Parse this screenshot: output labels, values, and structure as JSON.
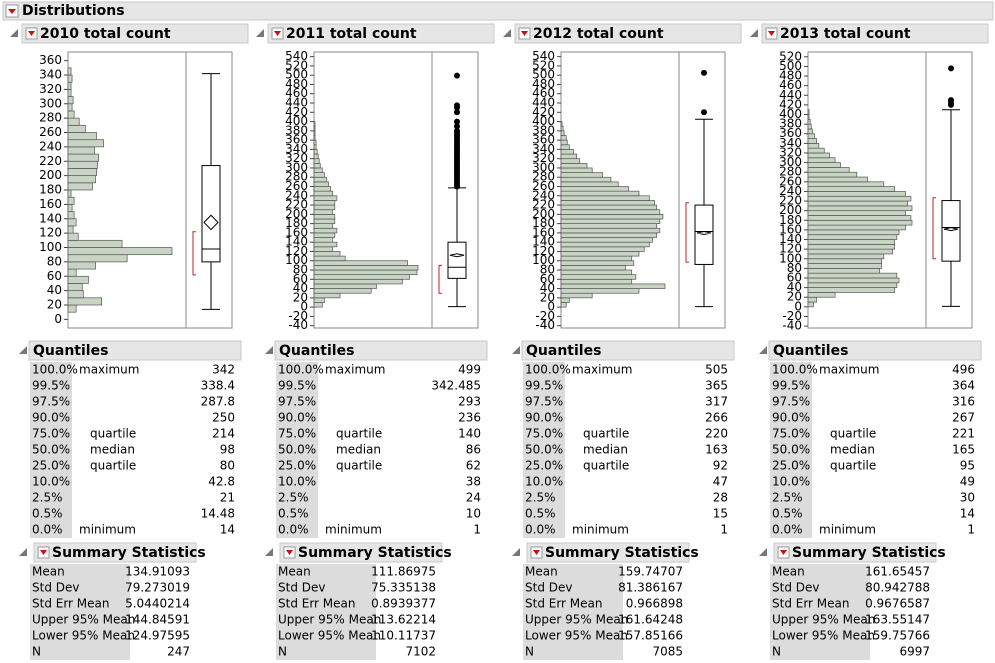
{
  "title": "Distributions",
  "panels": [
    {
      "title": "2010 total count",
      "histogram": {
        "ylim": [
          -12,
          372
        ],
        "yticks": [
          0,
          20,
          40,
          60,
          80,
          100,
          120,
          140,
          160,
          180,
          200,
          220,
          240,
          260,
          280,
          300,
          320,
          340,
          360
        ],
        "bins": [
          10,
          20,
          30,
          40,
          50,
          60,
          70,
          80,
          90,
          100,
          110,
          120,
          130,
          140,
          150,
          160,
          170,
          180,
          190,
          200,
          210,
          220,
          230,
          240,
          250,
          260,
          270,
          280,
          290,
          300,
          310,
          320,
          330,
          340,
          350
        ],
        "counts": [
          8,
          33,
          15,
          14,
          20,
          8,
          27,
          58,
          102,
          53,
          10,
          5,
          8,
          6,
          4,
          6,
          3,
          24,
          27,
          28,
          29,
          30,
          26,
          35,
          28,
          17,
          11,
          6,
          4,
          5,
          3,
          3,
          4,
          3
        ]
      },
      "boxplot": {
        "whiskers": [
          14,
          342
        ],
        "outliers": [],
        "shortest_half": [
          62,
          122
        ]
      },
      "quantiles": {
        "title": "Quantiles",
        "rows": [
          {
            "pct": "100.0%",
            "label": "maximum",
            "value": 342
          },
          {
            "pct": "99.5%",
            "value": 338.4
          },
          {
            "pct": "97.5%",
            "value": 287.8
          },
          {
            "pct": "90.0%",
            "value": 250
          },
          {
            "pct": "75.0%",
            "label": "quartile",
            "value": 214
          },
          {
            "pct": "50.0%",
            "label": "median",
            "value": 98
          },
          {
            "pct": "25.0%",
            "label": "quartile",
            "value": 80
          },
          {
            "pct": "10.0%",
            "value": 42.8
          },
          {
            "pct": "2.5%",
            "value": 21
          },
          {
            "pct": "0.5%",
            "value": 14.48
          },
          {
            "pct": "0.0%",
            "label": "minimum",
            "value": 14
          }
        ]
      },
      "summary": {
        "title": "Summary Statistics",
        "rows": [
          {
            "label": "Mean",
            "value": 134.91093
          },
          {
            "label": "Std Dev",
            "value": 79.273019
          },
          {
            "label": "Std Err Mean",
            "value": 5.0440214
          },
          {
            "label": "Upper 95% Mean",
            "value": 144.84591
          },
          {
            "label": "Lower 95% Mean",
            "value": 124.97595
          },
          {
            "label": "N",
            "value": 247
          }
        ]
      }
    },
    {
      "title": "2011 total count",
      "histogram": {
        "ylim": [
          -45,
          550
        ],
        "yticks": [
          -40,
          -20,
          0,
          20,
          40,
          60,
          80,
          100,
          120,
          140,
          160,
          180,
          200,
          220,
          240,
          260,
          280,
          300,
          320,
          340,
          360,
          380,
          400,
          420,
          440,
          460,
          480,
          500,
          520,
          540
        ],
        "bins": [
          0,
          10,
          20,
          30,
          40,
          50,
          60,
          70,
          80,
          90,
          100,
          110,
          120,
          130,
          140,
          150,
          160,
          170,
          180,
          190,
          200,
          210,
          220,
          230,
          240,
          250,
          260,
          270,
          280,
          290,
          300,
          310,
          320,
          330,
          340,
          350,
          360,
          370,
          380,
          390,
          400
        ],
        "counts": [
          8,
          10,
          25,
          55,
          60,
          85,
          92,
          99,
          100,
          90,
          30,
          25,
          18,
          22,
          18,
          20,
          22,
          18,
          20,
          20,
          18,
          20,
          20,
          22,
          18,
          16,
          14,
          12,
          10,
          8,
          6,
          5,
          4,
          3,
          2,
          2,
          1,
          1,
          1,
          1
        ]
      },
      "boxplot": {
        "whiskers": [
          1,
          257
        ],
        "outliers": [
          260,
          265,
          270,
          275,
          280,
          285,
          290,
          295,
          300,
          305,
          310,
          315,
          320,
          325,
          330,
          335,
          340,
          345,
          350,
          355,
          360,
          365,
          370,
          375,
          380,
          390,
          400,
          420,
          430,
          435,
          499
        ],
        "shortest_half": [
          30,
          90
        ]
      },
      "quantiles": {
        "title": "Quantiles",
        "rows": [
          {
            "pct": "100.0%",
            "label": "maximum",
            "value": 499
          },
          {
            "pct": "99.5%",
            "value": 342.485
          },
          {
            "pct": "97.5%",
            "value": 293
          },
          {
            "pct": "90.0%",
            "value": 236
          },
          {
            "pct": "75.0%",
            "label": "quartile",
            "value": 140
          },
          {
            "pct": "50.0%",
            "label": "median",
            "value": 86
          },
          {
            "pct": "25.0%",
            "label": "quartile",
            "value": 62
          },
          {
            "pct": "10.0%",
            "value": 38
          },
          {
            "pct": "2.5%",
            "value": 24
          },
          {
            "pct": "0.5%",
            "value": 10
          },
          {
            "pct": "0.0%",
            "label": "minimum",
            "value": 1
          }
        ]
      },
      "summary": {
        "title": "Summary Statistics",
        "rows": [
          {
            "label": "Mean",
            "value": 111.86975
          },
          {
            "label": "Std Dev",
            "value": 75.335138
          },
          {
            "label": "Std Err Mean",
            "value": 0.8939377
          },
          {
            "label": "Upper 95% Mean",
            "value": 113.62214
          },
          {
            "label": "Lower 95% Mean",
            "value": 110.11737
          },
          {
            "label": "N",
            "value": 7102
          }
        ]
      }
    },
    {
      "title": "2012 total count",
      "histogram": {
        "ylim": [
          -45,
          550
        ],
        "yticks": [
          -40,
          -20,
          0,
          20,
          40,
          60,
          80,
          100,
          120,
          140,
          160,
          180,
          200,
          220,
          240,
          260,
          280,
          300,
          320,
          340,
          360,
          380,
          400,
          420,
          440,
          460,
          480,
          500,
          520,
          540
        ],
        "bins": [
          0,
          10,
          20,
          30,
          40,
          50,
          60,
          70,
          80,
          90,
          100,
          110,
          120,
          130,
          140,
          150,
          160,
          170,
          180,
          190,
          200,
          210,
          220,
          230,
          240,
          250,
          260,
          270,
          280,
          290,
          300,
          310,
          320,
          330,
          340,
          350,
          360,
          370,
          380,
          390,
          400
        ],
        "counts": [
          5,
          8,
          30,
          75,
          100,
          68,
          72,
          68,
          62,
          70,
          68,
          75,
          80,
          85,
          88,
          92,
          95,
          92,
          95,
          98,
          95,
          92,
          90,
          85,
          75,
          65,
          55,
          48,
          40,
          30,
          25,
          18,
          15,
          12,
          8,
          6,
          5,
          3,
          2,
          1
        ]
      },
      "boxplot": {
        "whiskers": [
          1,
          405
        ],
        "outliers": [
          420,
          505
        ],
        "shortest_half": [
          97,
          225
        ]
      },
      "quantiles": {
        "title": "Quantiles",
        "rows": [
          {
            "pct": "100.0%",
            "label": "maximum",
            "value": 505
          },
          {
            "pct": "99.5%",
            "value": 365
          },
          {
            "pct": "97.5%",
            "value": 317
          },
          {
            "pct": "90.0%",
            "value": 266
          },
          {
            "pct": "75.0%",
            "label": "quartile",
            "value": 220
          },
          {
            "pct": "50.0%",
            "label": "median",
            "value": 163
          },
          {
            "pct": "25.0%",
            "label": "quartile",
            "value": 92
          },
          {
            "pct": "10.0%",
            "value": 47
          },
          {
            "pct": "2.5%",
            "value": 28
          },
          {
            "pct": "0.5%",
            "value": 15
          },
          {
            "pct": "0.0%",
            "label": "minimum",
            "value": 1
          }
        ]
      },
      "summary": {
        "title": "Summary Statistics",
        "rows": [
          {
            "label": "Mean",
            "value": 159.74707
          },
          {
            "label": "Std Dev",
            "value": 81.386167
          },
          {
            "label": "Std Err Mean",
            "value": 0.966898
          },
          {
            "label": "Upper 95% Mean",
            "value": 161.64248
          },
          {
            "label": "Lower 95% Mean",
            "value": 157.85166
          },
          {
            "label": "N",
            "value": 7085
          }
        ]
      }
    },
    {
      "title": "2013 total count",
      "histogram": {
        "ylim": [
          -44,
          530
        ],
        "yticks": [
          -40,
          -20,
          0,
          20,
          40,
          60,
          80,
          100,
          120,
          140,
          160,
          180,
          200,
          220,
          240,
          260,
          280,
          300,
          320,
          340,
          360,
          380,
          400,
          420,
          440,
          460,
          480,
          500,
          520
        ],
        "bins": [
          0,
          10,
          20,
          30,
          40,
          50,
          60,
          70,
          80,
          90,
          100,
          110,
          120,
          130,
          140,
          150,
          160,
          170,
          180,
          190,
          200,
          210,
          220,
          230,
          240,
          250,
          260,
          270,
          280,
          290,
          300,
          310,
          320,
          330,
          340,
          350,
          360,
          370,
          380,
          390,
          400,
          410
        ],
        "counts": [
          5,
          8,
          25,
          80,
          82,
          84,
          82,
          66,
          68,
          68,
          70,
          78,
          80,
          80,
          82,
          84,
          90,
          96,
          95,
          90,
          96,
          92,
          95,
          90,
          80,
          70,
          55,
          45,
          38,
          30,
          25,
          20,
          15,
          10,
          8,
          6,
          4,
          3,
          2,
          1,
          1
        ]
      },
      "boxplot": {
        "whiskers": [
          1,
          410
        ],
        "outliers": [
          420,
          425,
          430,
          496
        ],
        "shortest_half": [
          100,
          227
        ]
      },
      "quantiles": {
        "title": "Quantiles",
        "rows": [
          {
            "pct": "100.0%",
            "label": "maximum",
            "value": 496
          },
          {
            "pct": "99.5%",
            "value": 364
          },
          {
            "pct": "97.5%",
            "value": 316
          },
          {
            "pct": "90.0%",
            "value": 267
          },
          {
            "pct": "75.0%",
            "label": "quartile",
            "value": 221
          },
          {
            "pct": "50.0%",
            "label": "median",
            "value": 165
          },
          {
            "pct": "25.0%",
            "label": "quartile",
            "value": 95
          },
          {
            "pct": "10.0%",
            "value": 49
          },
          {
            "pct": "2.5%",
            "value": 30
          },
          {
            "pct": "0.5%",
            "value": 14
          },
          {
            "pct": "0.0%",
            "label": "minimum",
            "value": 1
          }
        ]
      },
      "summary": {
        "title": "Summary Statistics",
        "rows": [
          {
            "label": "Mean",
            "value": 161.65457
          },
          {
            "label": "Std Dev",
            "value": 80.942788
          },
          {
            "label": "Std Err Mean",
            "value": 0.9676587
          },
          {
            "label": "Upper 95% Mean",
            "value": 163.55147
          },
          {
            "label": "Lower 95% Mean",
            "value": 159.75766
          },
          {
            "label": "N",
            "value": 6997
          }
        ]
      }
    }
  ]
}
